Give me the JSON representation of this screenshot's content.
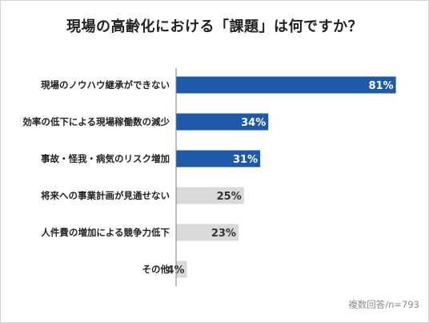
{
  "title": "現場の高齢化における「課題」は何ですか？",
  "footnote": "複数回答/n=793",
  "colors": {
    "highlight": "#1f5aa8",
    "muted": "#d9d9d9",
    "axis": "#7f7f7f",
    "label_on_highlight": "#ffffff",
    "label_on_muted": "#333333"
  },
  "chart_data": {
    "type": "bar",
    "orientation": "horizontal",
    "categories": [
      "現場のノウハウ継承ができない",
      "効率の低下による現場稼働数の減少",
      "事故・怪我・病気のリスク増加",
      "将来への事業計画が見通せない",
      "人件費の増加による競争力低下",
      "その他"
    ],
    "values": [
      81,
      34,
      31,
      25,
      23,
      4
    ],
    "value_labels": [
      "81%",
      "34%",
      "31%",
      "25%",
      "23%",
      "4%"
    ],
    "highlighted": [
      true,
      true,
      true,
      false,
      false,
      false
    ],
    "xlim": [
      0,
      100
    ],
    "grid": false,
    "legend": "none"
  }
}
